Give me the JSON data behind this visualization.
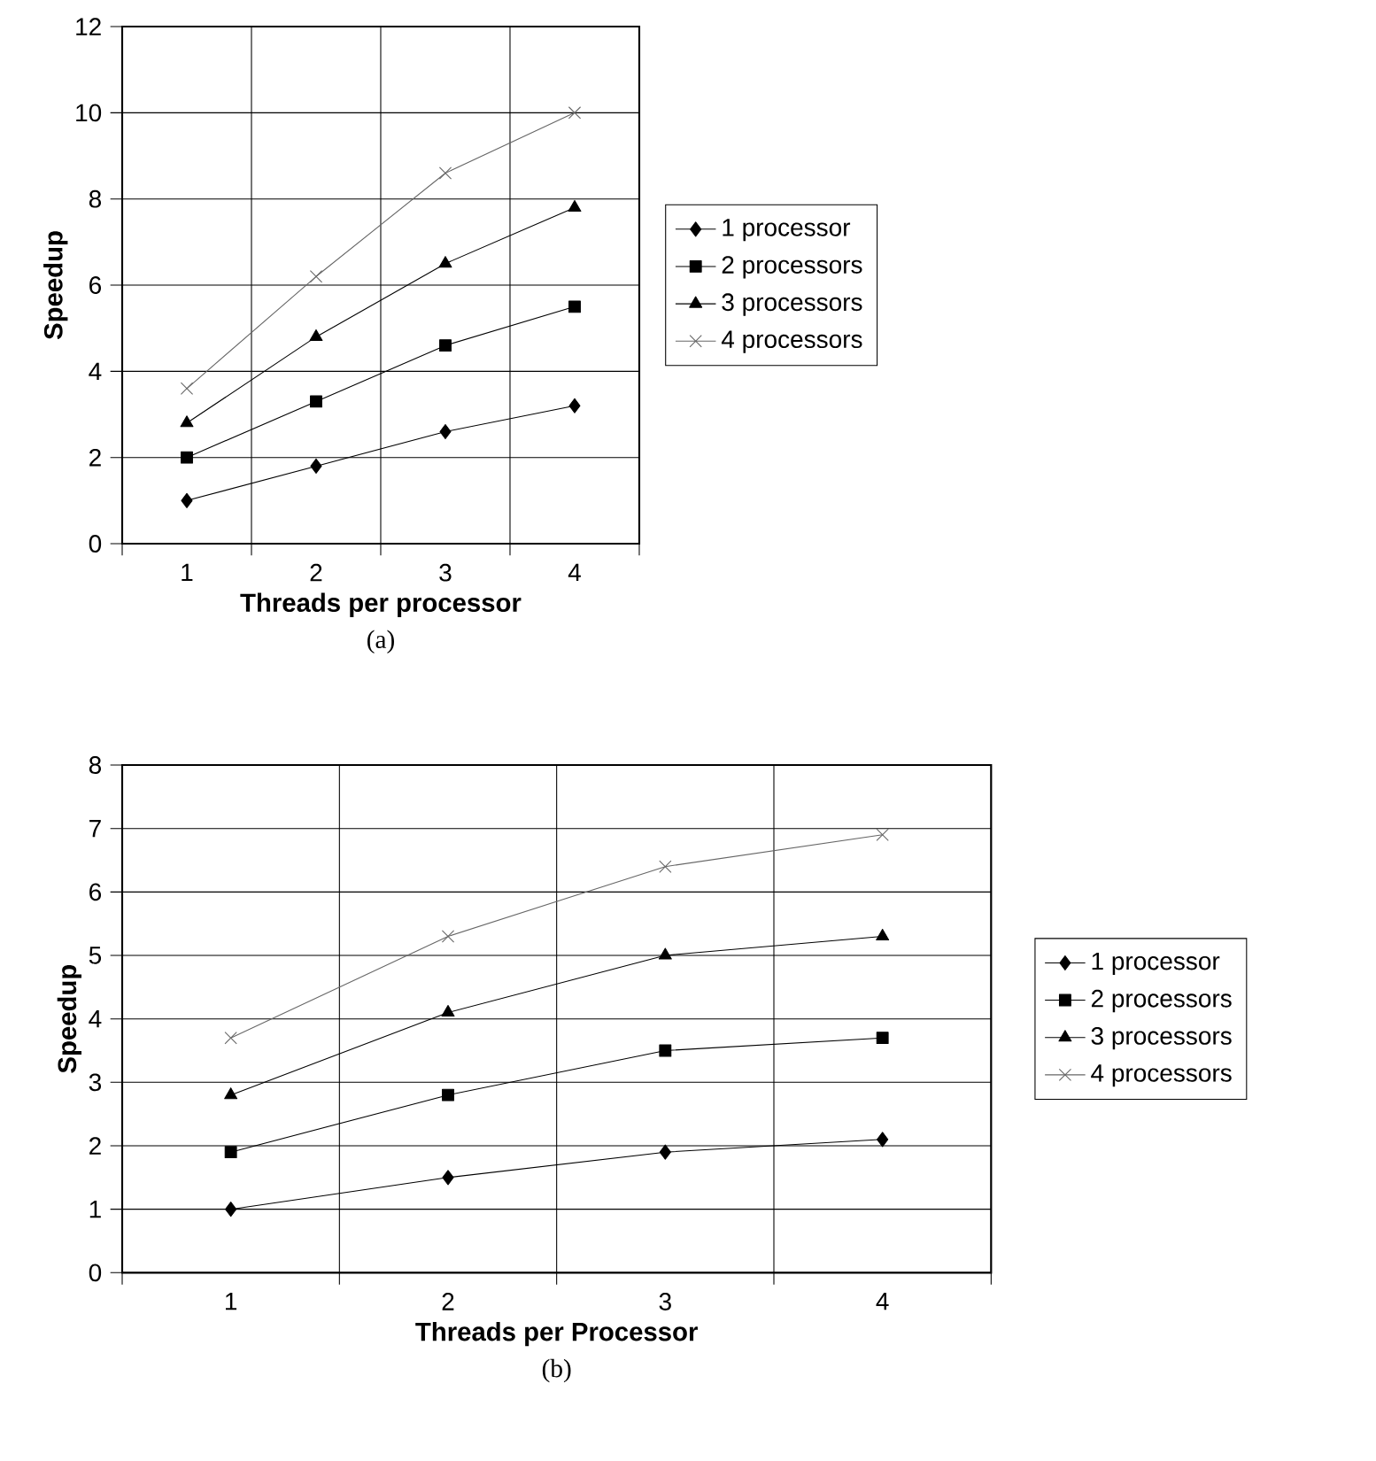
{
  "chart_data": [
    {
      "type": "line",
      "categories": [
        "1",
        "2",
        "3",
        "4"
      ],
      "xlabel": "Threads per processor",
      "ylabel": "Speedup",
      "ylim": [
        0,
        12
      ],
      "yticks": [
        0,
        2,
        4,
        6,
        8,
        10,
        12
      ],
      "grid": true,
      "legend": "right",
      "annotations": [
        "(a)"
      ],
      "series": [
        {
          "name": "1 processor",
          "color": "#000000",
          "marker": "diamond",
          "values": [
            1.0,
            1.8,
            2.6,
            3.2
          ]
        },
        {
          "name": "2 processors",
          "color": "#000000",
          "marker": "square",
          "values": [
            2.0,
            3.3,
            4.6,
            5.5
          ]
        },
        {
          "name": "3 processors",
          "color": "#000000",
          "marker": "triangle",
          "values": [
            2.8,
            4.8,
            6.5,
            7.8
          ]
        },
        {
          "name": "4 processors",
          "color": "#666666",
          "marker": "cross",
          "values": [
            3.6,
            6.2,
            8.6,
            10.0
          ]
        }
      ]
    },
    {
      "type": "line",
      "categories": [
        "1",
        "2",
        "3",
        "4"
      ],
      "xlabel": "Threads per Processor",
      "ylabel": "Speedup",
      "ylim": [
        0,
        8
      ],
      "yticks": [
        0,
        1,
        2,
        3,
        4,
        5,
        6,
        7,
        8
      ],
      "grid": true,
      "legend": "right",
      "annotations": [
        "(b)"
      ],
      "series": [
        {
          "name": "1 processor",
          "color": "#000000",
          "marker": "diamond",
          "values": [
            1.0,
            1.5,
            1.9,
            2.1
          ]
        },
        {
          "name": "2 processors",
          "color": "#000000",
          "marker": "square",
          "values": [
            1.9,
            2.8,
            3.5,
            3.7
          ]
        },
        {
          "name": "3 processors",
          "color": "#000000",
          "marker": "triangle",
          "values": [
            2.8,
            4.1,
            5.0,
            5.3
          ]
        },
        {
          "name": "4 processors",
          "color": "#666666",
          "marker": "cross",
          "values": [
            3.7,
            5.3,
            6.4,
            6.9
          ]
        }
      ]
    }
  ]
}
